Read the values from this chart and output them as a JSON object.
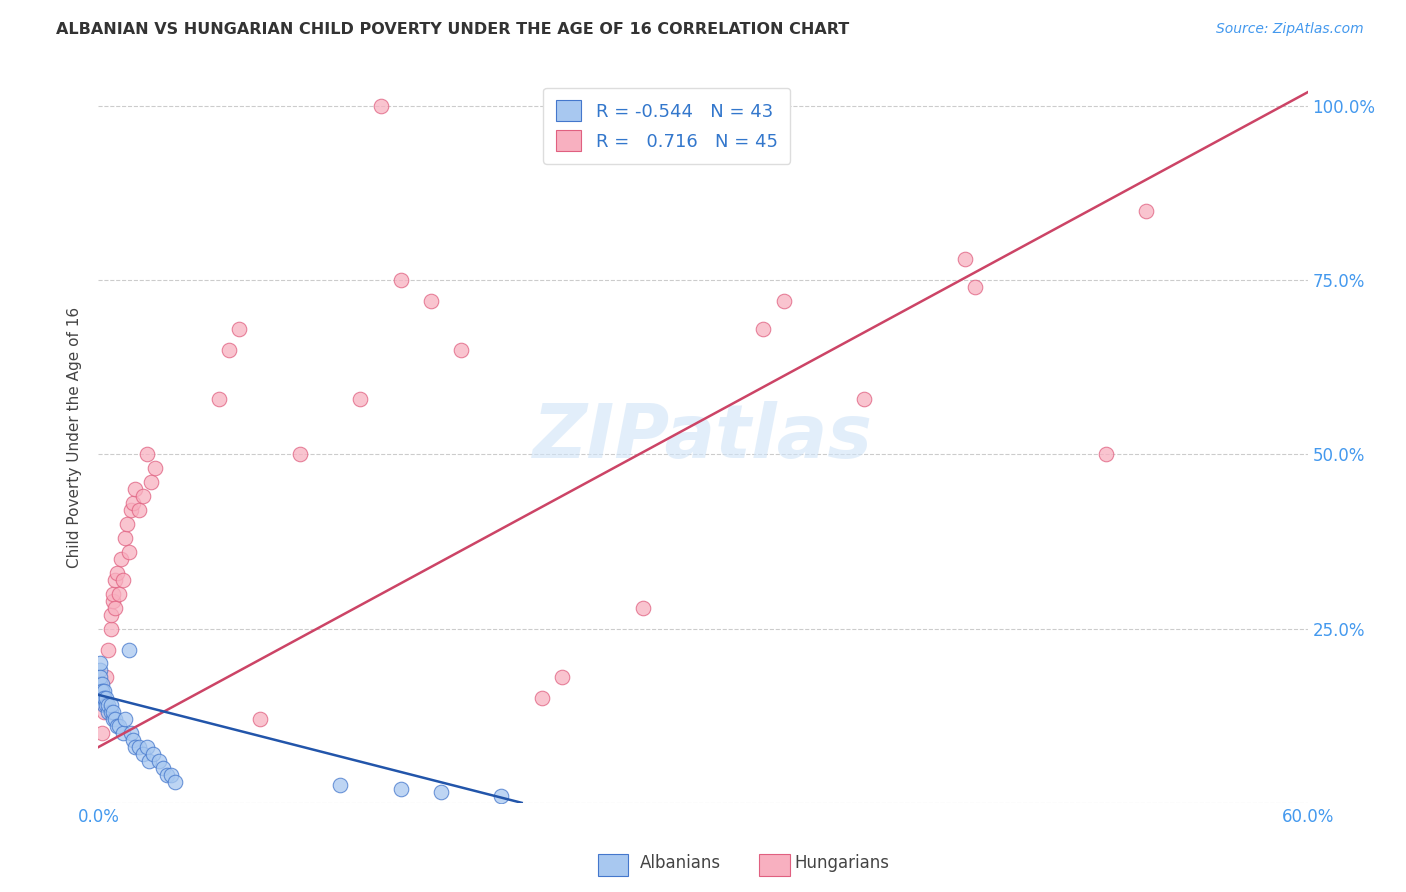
{
  "title": "ALBANIAN VS HUNGARIAN CHILD POVERTY UNDER THE AGE OF 16 CORRELATION CHART",
  "source": "Source: ZipAtlas.com",
  "ylabel": "Child Poverty Under the Age of 16",
  "xlim": [
    0.0,
    0.6
  ],
  "ylim": [
    0.0,
    1.05
  ],
  "xticks": [
    0.0,
    0.1,
    0.2,
    0.3,
    0.4,
    0.5,
    0.6
  ],
  "xtick_labels": [
    "0.0%",
    "",
    "",
    "",
    "",
    "",
    "60.0%"
  ],
  "yticks": [
    0.0,
    0.25,
    0.5,
    0.75,
    1.0
  ],
  "right_ytick_labels": [
    "",
    "25.0%",
    "50.0%",
    "75.0%",
    "100.0%"
  ],
  "albanian_R": -0.544,
  "albanian_N": 43,
  "hungarian_R": 0.716,
  "hungarian_N": 45,
  "albanian_color": "#a8c8f0",
  "hungarian_color": "#f8b0c0",
  "albanian_edge_color": "#4477cc",
  "hungarian_edge_color": "#e06080",
  "albanian_line_color": "#2255aa",
  "hungarian_line_color": "#cc4466",
  "background_color": "#ffffff",
  "watermark": "ZIPatlas",
  "title_color": "#333333",
  "axis_label_color": "#444444",
  "tick_color": "#4499ee",
  "grid_color": "#cccccc",
  "legend_r_color": "#3377cc",
  "albanian_points": [
    [
      0.001,
      0.19
    ],
    [
      0.001,
      0.2
    ],
    [
      0.001,
      0.17
    ],
    [
      0.001,
      0.18
    ],
    [
      0.002,
      0.16
    ],
    [
      0.002,
      0.17
    ],
    [
      0.002,
      0.15
    ],
    [
      0.002,
      0.16
    ],
    [
      0.003,
      0.15
    ],
    [
      0.003,
      0.16
    ],
    [
      0.003,
      0.14
    ],
    [
      0.003,
      0.15
    ],
    [
      0.004,
      0.14
    ],
    [
      0.004,
      0.15
    ],
    [
      0.005,
      0.13
    ],
    [
      0.005,
      0.14
    ],
    [
      0.006,
      0.13
    ],
    [
      0.006,
      0.14
    ],
    [
      0.007,
      0.12
    ],
    [
      0.007,
      0.13
    ],
    [
      0.008,
      0.12
    ],
    [
      0.009,
      0.11
    ],
    [
      0.01,
      0.11
    ],
    [
      0.012,
      0.1
    ],
    [
      0.013,
      0.12
    ],
    [
      0.015,
      0.22
    ],
    [
      0.016,
      0.1
    ],
    [
      0.017,
      0.09
    ],
    [
      0.018,
      0.08
    ],
    [
      0.02,
      0.08
    ],
    [
      0.022,
      0.07
    ],
    [
      0.024,
      0.08
    ],
    [
      0.025,
      0.06
    ],
    [
      0.027,
      0.07
    ],
    [
      0.03,
      0.06
    ],
    [
      0.032,
      0.05
    ],
    [
      0.034,
      0.04
    ],
    [
      0.036,
      0.04
    ],
    [
      0.038,
      0.03
    ],
    [
      0.12,
      0.025
    ],
    [
      0.15,
      0.02
    ],
    [
      0.17,
      0.015
    ],
    [
      0.2,
      0.01
    ]
  ],
  "hungarian_points": [
    [
      0.002,
      0.1
    ],
    [
      0.003,
      0.13
    ],
    [
      0.004,
      0.18
    ],
    [
      0.005,
      0.22
    ],
    [
      0.006,
      0.25
    ],
    [
      0.006,
      0.27
    ],
    [
      0.007,
      0.29
    ],
    [
      0.007,
      0.3
    ],
    [
      0.008,
      0.28
    ],
    [
      0.008,
      0.32
    ],
    [
      0.009,
      0.33
    ],
    [
      0.01,
      0.3
    ],
    [
      0.011,
      0.35
    ],
    [
      0.012,
      0.32
    ],
    [
      0.013,
      0.38
    ],
    [
      0.014,
      0.4
    ],
    [
      0.015,
      0.36
    ],
    [
      0.016,
      0.42
    ],
    [
      0.017,
      0.43
    ],
    [
      0.018,
      0.45
    ],
    [
      0.02,
      0.42
    ],
    [
      0.022,
      0.44
    ],
    [
      0.024,
      0.5
    ],
    [
      0.026,
      0.46
    ],
    [
      0.028,
      0.48
    ],
    [
      0.06,
      0.58
    ],
    [
      0.065,
      0.65
    ],
    [
      0.07,
      0.68
    ],
    [
      0.1,
      0.5
    ],
    [
      0.13,
      0.58
    ],
    [
      0.15,
      0.75
    ],
    [
      0.165,
      0.72
    ],
    [
      0.18,
      0.65
    ],
    [
      0.22,
      0.15
    ],
    [
      0.23,
      0.18
    ],
    [
      0.27,
      0.28
    ],
    [
      0.33,
      0.68
    ],
    [
      0.34,
      0.72
    ],
    [
      0.38,
      0.58
    ],
    [
      0.43,
      0.78
    ],
    [
      0.435,
      0.74
    ],
    [
      0.5,
      0.5
    ],
    [
      0.52,
      0.85
    ],
    [
      0.14,
      1.0
    ],
    [
      0.08,
      0.12
    ]
  ],
  "hun_line_x": [
    0.0,
    0.6
  ],
  "hun_line_y": [
    0.08,
    1.02
  ],
  "alb_line_x": [
    0.0,
    0.21
  ],
  "alb_line_y": [
    0.155,
    0.0
  ]
}
